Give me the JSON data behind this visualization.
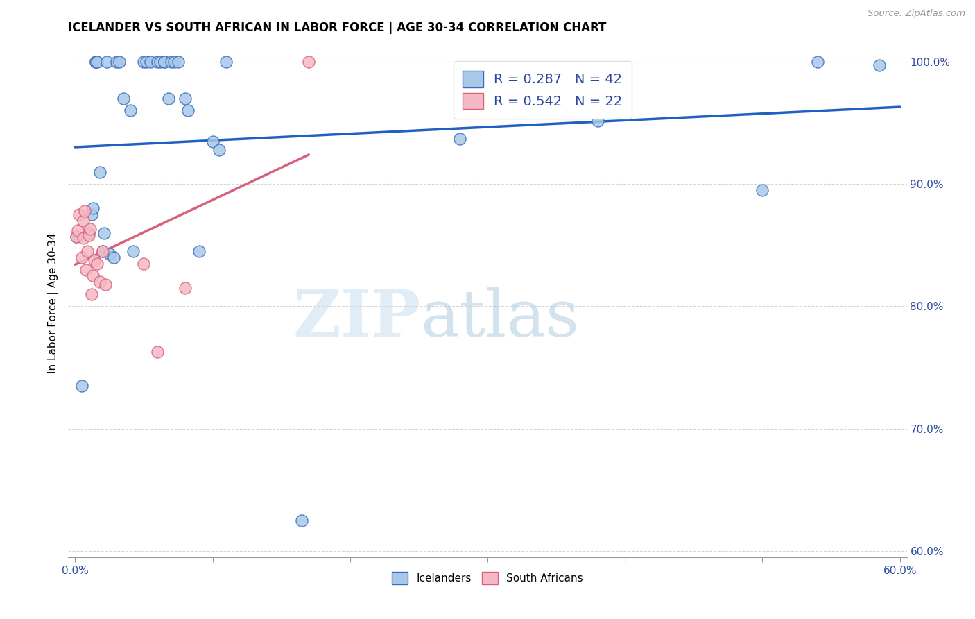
{
  "title": "ICELANDER VS SOUTH AFRICAN IN LABOR FORCE | AGE 30-34 CORRELATION CHART",
  "source": "Source: ZipAtlas.com",
  "ylabel": "In Labor Force | Age 30-34",
  "xlim": [
    -0.005,
    0.605
  ],
  "ylim": [
    0.595,
    1.01
  ],
  "xtick_positions": [
    0.0,
    0.1,
    0.2,
    0.3,
    0.4,
    0.5,
    0.6
  ],
  "xticklabels": [
    "0.0%",
    "",
    "",
    "",
    "",
    "",
    "60.0%"
  ],
  "ytick_positions": [
    0.6,
    0.7,
    0.8,
    0.9,
    1.0
  ],
  "ytick_labels": [
    "60.0%",
    "70.0%",
    "80.0%",
    "90.0%",
    "100.0%"
  ],
  "watermark_zip": "ZIP",
  "watermark_atlas": "atlas",
  "legend_blue_label": "R = 0.287   N = 42",
  "legend_pink_label": "R = 0.542   N = 22",
  "blue_fill": "#a8c8e8",
  "blue_edge": "#3a6bbf",
  "pink_fill": "#f5b8c4",
  "pink_edge": "#d9607a",
  "blue_line": "#2060c0",
  "pink_line": "#d9607a",
  "grid_color": "#cccccc",
  "icelander_x": [
    0.001,
    0.005,
    0.01,
    0.012,
    0.013,
    0.015,
    0.015,
    0.016,
    0.018,
    0.02,
    0.021,
    0.023,
    0.025,
    0.028,
    0.03,
    0.032,
    0.035,
    0.04,
    0.042,
    0.05,
    0.052,
    0.055,
    0.06,
    0.062,
    0.065,
    0.065,
    0.068,
    0.07,
    0.072,
    0.075,
    0.08,
    0.082,
    0.09,
    0.1,
    0.105,
    0.11,
    0.165,
    0.28,
    0.38,
    0.5,
    0.54,
    0.585
  ],
  "icelander_y": [
    0.857,
    0.735,
    0.86,
    0.875,
    0.88,
    1.0,
    1.0,
    1.0,
    0.91,
    0.845,
    0.86,
    1.0,
    0.843,
    0.84,
    1.0,
    1.0,
    0.97,
    0.96,
    0.845,
    1.0,
    1.0,
    1.0,
    1.0,
    1.0,
    1.0,
    1.0,
    0.97,
    1.0,
    1.0,
    1.0,
    0.97,
    0.96,
    0.845,
    0.935,
    0.928,
    1.0,
    0.625,
    0.937,
    0.952,
    0.895,
    1.0,
    0.997
  ],
  "south_african_x": [
    0.001,
    0.002,
    0.003,
    0.005,
    0.006,
    0.006,
    0.007,
    0.008,
    0.009,
    0.01,
    0.011,
    0.012,
    0.013,
    0.014,
    0.016,
    0.018,
    0.02,
    0.022,
    0.05,
    0.06,
    0.08,
    0.17
  ],
  "south_african_y": [
    0.857,
    0.862,
    0.875,
    0.84,
    0.856,
    0.87,
    0.878,
    0.83,
    0.845,
    0.858,
    0.863,
    0.81,
    0.825,
    0.838,
    0.835,
    0.82,
    0.845,
    0.818,
    0.835,
    0.763,
    0.815,
    1.0
  ]
}
